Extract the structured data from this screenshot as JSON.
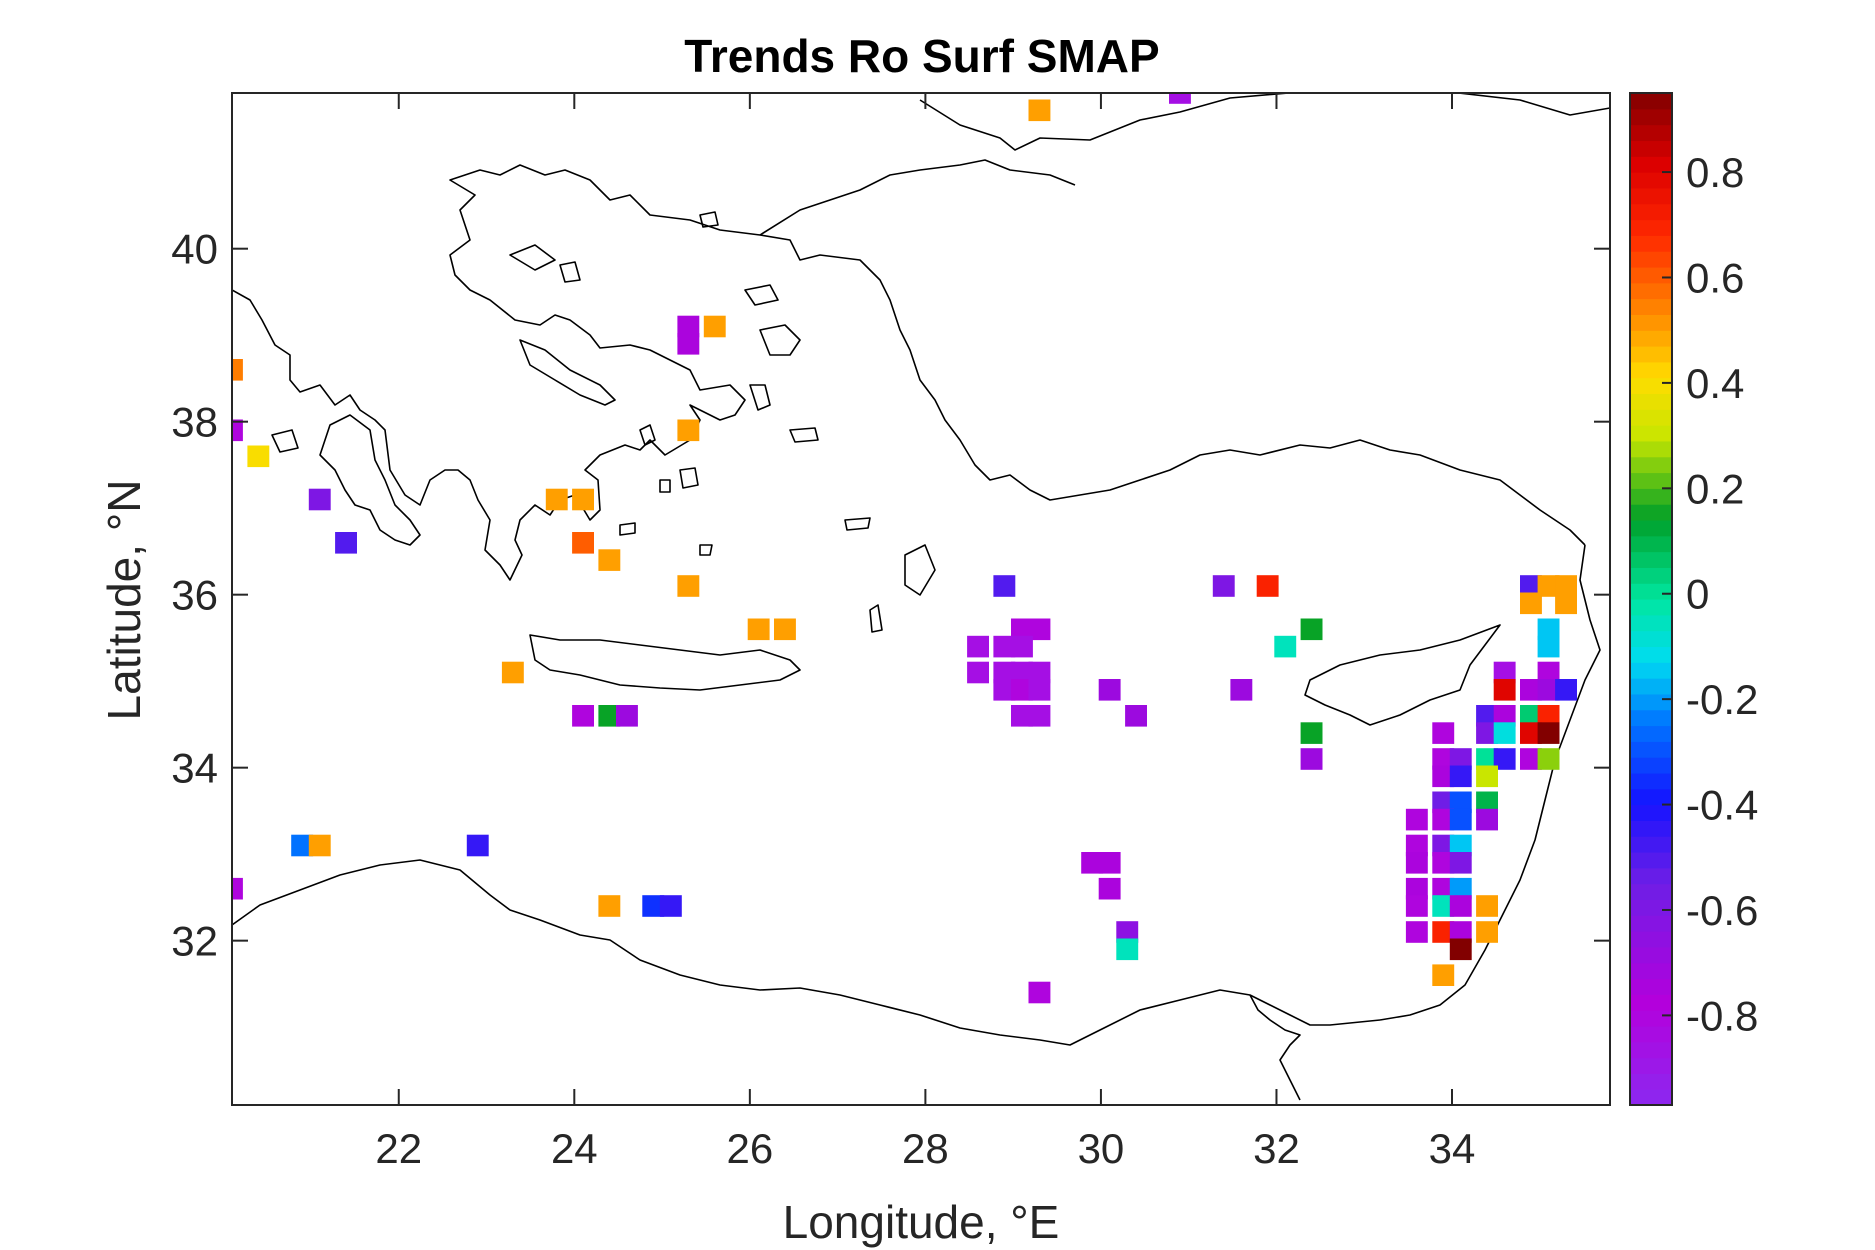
{
  "chart_data": {
    "type": "heatmap",
    "title": "Trends Ro Surf SMAP",
    "xlabel": "Longitude, °E",
    "ylabel": "Latitude, °N",
    "xlim": [
      20.1,
      35.8
    ],
    "ylim": [
      30.1,
      41.8
    ],
    "xticks": [
      "22",
      "24",
      "26",
      "28",
      "30",
      "32",
      "34"
    ],
    "xtick_values": [
      22,
      24,
      26,
      28,
      30,
      32,
      34
    ],
    "yticks": [
      "32",
      "34",
      "36",
      "38",
      "40"
    ],
    "ytick_values": [
      32,
      34,
      36,
      38,
      40
    ],
    "colorbar": {
      "range": [
        -0.97,
        0.95
      ],
      "ticks": [
        "-0.8",
        "-0.6",
        "-0.4",
        "-0.2",
        "0",
        "0.2",
        "0.4",
        "0.6",
        "0.8"
      ],
      "tick_values": [
        -0.8,
        -0.6,
        -0.4,
        -0.2,
        0,
        0.2,
        0.4,
        0.6,
        0.8
      ],
      "colormap": "jet-with-magenta",
      "levels": 64
    },
    "cell_size_deg": 0.25,
    "cells": [
      [
        29.3,
        41.6,
        0.5
      ],
      [
        30.9,
        41.8,
        -0.85
      ],
      [
        25.3,
        39.1,
        -0.75
      ],
      [
        25.3,
        38.9,
        -0.75
      ],
      [
        25.6,
        39.1,
        0.5
      ],
      [
        20.1,
        38.6,
        0.55
      ],
      [
        20.1,
        37.9,
        -0.8
      ],
      [
        20.4,
        37.6,
        0.4
      ],
      [
        25.3,
        37.9,
        0.5
      ],
      [
        21.1,
        37.1,
        -0.6
      ],
      [
        21.4,
        36.6,
        -0.5
      ],
      [
        23.8,
        37.1,
        0.5
      ],
      [
        24.1,
        37.1,
        0.5
      ],
      [
        24.1,
        36.6,
        0.6
      ],
      [
        24.4,
        36.4,
        0.5
      ],
      [
        25.3,
        36.1,
        0.5
      ],
      [
        26.1,
        35.6,
        0.5
      ],
      [
        26.4,
        35.6,
        0.5
      ],
      [
        23.3,
        35.1,
        0.5
      ],
      [
        24.1,
        34.6,
        -0.8
      ],
      [
        24.4,
        34.6,
        0.15
      ],
      [
        24.6,
        34.6,
        -0.7
      ],
      [
        28.9,
        36.1,
        -0.5
      ],
      [
        31.4,
        36.1,
        -0.6
      ],
      [
        31.9,
        36.1,
        0.7
      ],
      [
        29.1,
        35.6,
        -0.8
      ],
      [
        29.3,
        35.6,
        -0.8
      ],
      [
        28.6,
        35.4,
        -0.85
      ],
      [
        28.9,
        35.4,
        -0.85
      ],
      [
        29.1,
        35.4,
        -0.85
      ],
      [
        28.6,
        35.1,
        -0.85
      ],
      [
        28.9,
        35.1,
        -0.85
      ],
      [
        29.1,
        35.1,
        -0.85
      ],
      [
        29.3,
        35.1,
        -0.85
      ],
      [
        28.9,
        34.9,
        -0.85
      ],
      [
        29.1,
        34.9,
        -0.8
      ],
      [
        29.3,
        34.9,
        -0.85
      ],
      [
        29.1,
        34.6,
        -0.85
      ],
      [
        29.3,
        34.6,
        -0.85
      ],
      [
        30.1,
        34.9,
        -0.7
      ],
      [
        30.4,
        34.6,
        -0.7
      ],
      [
        31.6,
        34.9,
        -0.7
      ],
      [
        32.4,
        35.6,
        0.15
      ],
      [
        32.1,
        35.4,
        -0.05
      ],
      [
        32.4,
        34.4,
        0.15
      ],
      [
        32.4,
        34.1,
        -0.7
      ],
      [
        34.9,
        36.1,
        -0.5
      ],
      [
        35.1,
        36.1,
        0.5
      ],
      [
        35.3,
        36.1,
        0.5
      ],
      [
        34.9,
        35.9,
        0.5
      ],
      [
        35.3,
        35.9,
        0.5
      ],
      [
        35.1,
        35.6,
        -0.15
      ],
      [
        35.1,
        35.4,
        -0.15
      ],
      [
        34.6,
        35.1,
        -0.85
      ],
      [
        35.1,
        35.1,
        -0.8
      ],
      [
        34.6,
        34.9,
        0.8
      ],
      [
        34.9,
        34.9,
        -0.75
      ],
      [
        35.1,
        34.9,
        -0.7
      ],
      [
        35.3,
        34.9,
        -0.45
      ],
      [
        34.4,
        34.6,
        -0.5
      ],
      [
        34.6,
        34.6,
        -0.75
      ],
      [
        34.9,
        34.6,
        0.05
      ],
      [
        35.1,
        34.6,
        0.7
      ],
      [
        33.9,
        34.4,
        -0.8
      ],
      [
        34.4,
        34.4,
        -0.6
      ],
      [
        34.6,
        34.4,
        -0.1
      ],
      [
        34.9,
        34.4,
        0.8
      ],
      [
        35.1,
        34.4,
        0.95
      ],
      [
        33.9,
        34.1,
        -0.8
      ],
      [
        34.1,
        34.1,
        -0.6
      ],
      [
        34.4,
        34.1,
        0.0
      ],
      [
        34.6,
        34.1,
        -0.45
      ],
      [
        34.9,
        34.1,
        -0.8
      ],
      [
        35.1,
        34.1,
        0.25
      ],
      [
        33.9,
        33.9,
        -0.75
      ],
      [
        34.1,
        33.9,
        -0.45
      ],
      [
        34.4,
        33.9,
        0.3
      ],
      [
        33.9,
        33.6,
        -0.55
      ],
      [
        34.1,
        33.6,
        -0.3
      ],
      [
        34.4,
        33.6,
        0.1
      ],
      [
        33.6,
        33.4,
        -0.8
      ],
      [
        33.9,
        33.4,
        -0.8
      ],
      [
        34.1,
        33.4,
        -0.3
      ],
      [
        34.4,
        33.4,
        -0.7
      ],
      [
        33.6,
        33.1,
        -0.8
      ],
      [
        33.9,
        33.1,
        -0.6
      ],
      [
        34.1,
        33.1,
        -0.15
      ],
      [
        33.6,
        32.9,
        -0.75
      ],
      [
        33.9,
        32.9,
        -0.8
      ],
      [
        34.1,
        32.9,
        -0.6
      ],
      [
        33.6,
        32.6,
        -0.75
      ],
      [
        33.9,
        32.6,
        -0.8
      ],
      [
        34.1,
        32.6,
        -0.2
      ],
      [
        33.6,
        32.4,
        -0.8
      ],
      [
        33.9,
        32.4,
        -0.05
      ],
      [
        34.1,
        32.4,
        -0.75
      ],
      [
        34.4,
        32.4,
        0.5
      ],
      [
        33.6,
        32.1,
        -0.8
      ],
      [
        33.9,
        32.1,
        0.7
      ],
      [
        34.1,
        32.1,
        -0.75
      ],
      [
        34.4,
        32.1,
        0.5
      ],
      [
        34.1,
        31.9,
        0.95
      ],
      [
        33.9,
        31.6,
        0.5
      ],
      [
        29.9,
        32.9,
        -0.75
      ],
      [
        30.1,
        32.9,
        -0.75
      ],
      [
        30.1,
        32.6,
        -0.75
      ],
      [
        30.3,
        32.1,
        -0.65
      ],
      [
        30.3,
        31.9,
        -0.05
      ],
      [
        29.3,
        31.4,
        -0.8
      ],
      [
        20.9,
        33.1,
        -0.25
      ],
      [
        21.1,
        33.1,
        0.5
      ],
      [
        22.9,
        33.1,
        -0.45
      ],
      [
        20.1,
        32.6,
        -0.8
      ],
      [
        24.4,
        32.4,
        0.5
      ],
      [
        24.9,
        32.4,
        -0.35
      ],
      [
        25.1,
        32.4,
        -0.45
      ]
    ]
  }
}
